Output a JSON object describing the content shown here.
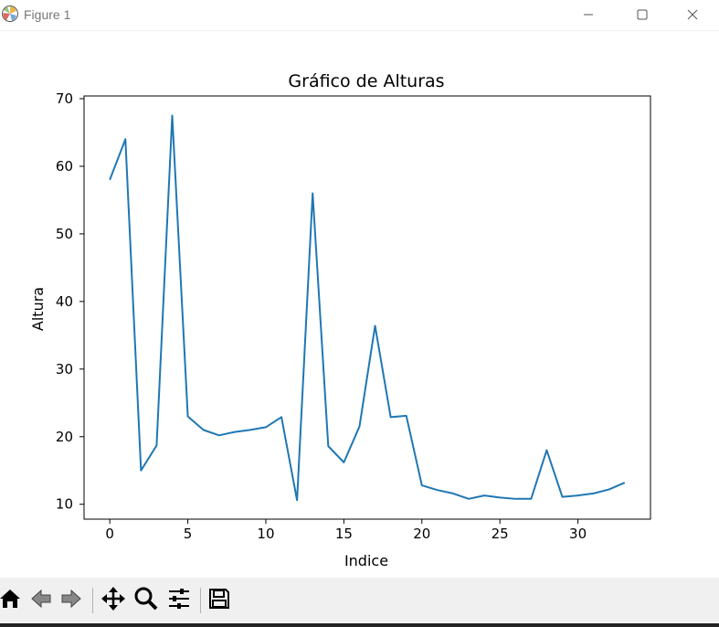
{
  "window": {
    "title": "Figure 1",
    "icon": "matplotlib-logo-icon",
    "controls": [
      "minimize-icon",
      "maximize-icon",
      "close-icon"
    ]
  },
  "toolbar": {
    "buttons": [
      "home-icon",
      "back-arrow-icon",
      "forward-arrow-icon",
      "pan-icon",
      "zoom-icon",
      "configure-subplots-icon",
      "save-icon"
    ]
  },
  "chart_data": {
    "type": "line",
    "title": "Gráfico de Alturas",
    "xlabel": "Indice",
    "ylabel": "Altura",
    "x_ticks": [
      0,
      5,
      10,
      15,
      20,
      25,
      30
    ],
    "y_ticks": [
      10,
      20,
      30,
      40,
      50,
      60,
      70
    ],
    "xlim": [
      -1.65,
      34.65
    ],
    "ylimits": [
      7.8,
      70.4
    ],
    "grid": false,
    "color": "#1f77b4",
    "series": [
      {
        "x": [
          0,
          1,
          2,
          3,
          4,
          5,
          6,
          7,
          8,
          9,
          10,
          11,
          12,
          13,
          14,
          15,
          16,
          17,
          18,
          19,
          20,
          21,
          22,
          23,
          24,
          25,
          26,
          27,
          28,
          29,
          30,
          31,
          32,
          33
        ],
        "values": [
          58,
          64,
          15,
          18.7,
          67.5,
          23,
          21,
          20.2,
          20.7,
          21,
          21.4,
          22.9,
          10.6,
          56,
          18.6,
          16.2,
          21.5,
          36.4,
          22.9,
          23.1,
          12.8,
          12.1,
          11.6,
          10.8,
          11.3,
          11,
          10.8,
          10.8,
          18,
          11.1,
          11.3,
          11.6,
          12.2,
          13.2
        ]
      }
    ]
  }
}
